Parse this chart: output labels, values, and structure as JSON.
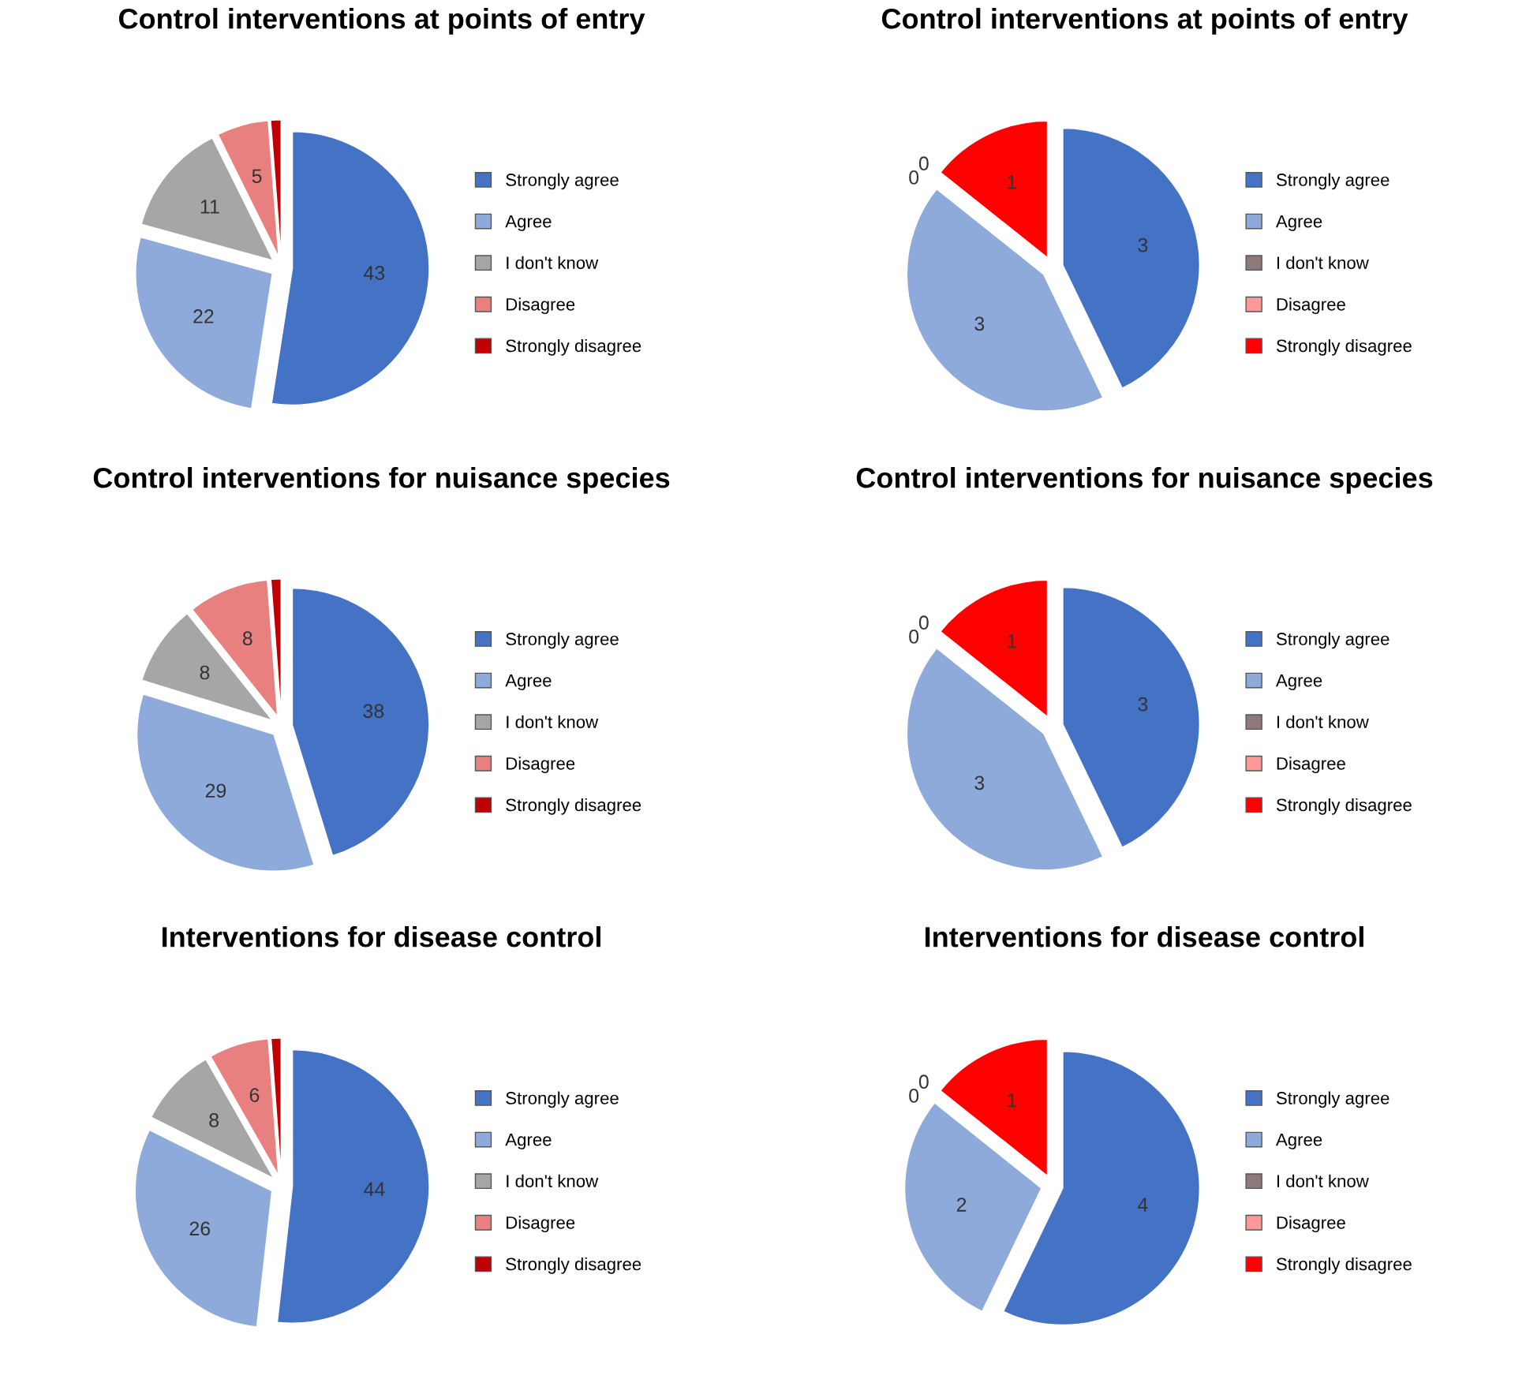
{
  "chart_data": [
    {
      "type": "pie",
      "title": "Control interventions at points of entry",
      "categories": [
        "Strongly agree",
        "Agree",
        "I don't know",
        "Disagree",
        "Strongly disagree"
      ],
      "values": [
        43,
        22,
        11,
        5,
        1
      ],
      "colors": [
        "#4472c4",
        "#8eaadb",
        "#a6a6a6",
        "#e88080",
        "#c00000"
      ],
      "value_labels": [
        "43",
        "22",
        "11",
        "5",
        null
      ],
      "legend": "right"
    },
    {
      "type": "pie",
      "title": "Control interventions at points of entry",
      "categories": [
        "Strongly agree",
        "Agree",
        "I don't know",
        "Disagree",
        "Strongly disagree"
      ],
      "values": [
        3,
        3,
        0,
        0,
        1
      ],
      "colors": [
        "#4472c4",
        "#8eaadb",
        "#8c7a7a",
        "#ff9999",
        "#ff0000"
      ],
      "value_labels": [
        "3",
        "3",
        "0",
        "0",
        "1"
      ],
      "legend": "right"
    },
    {
      "type": "pie",
      "title": "Control interventions for nuisance species",
      "categories": [
        "Strongly agree",
        "Agree",
        "I don't know",
        "Disagree",
        "Strongly disagree"
      ],
      "values": [
        38,
        29,
        8,
        8,
        1
      ],
      "colors": [
        "#4472c4",
        "#8eaadb",
        "#a6a6a6",
        "#e88080",
        "#c00000"
      ],
      "value_labels": [
        "38",
        "29",
        "8",
        "8",
        null
      ],
      "legend": "right"
    },
    {
      "type": "pie",
      "title": "Control interventions for nuisance species",
      "categories": [
        "Strongly agree",
        "Agree",
        "I don't know",
        "Disagree",
        "Strongly disagree"
      ],
      "values": [
        3,
        3,
        0,
        0,
        1
      ],
      "colors": [
        "#4472c4",
        "#8eaadb",
        "#8c7a7a",
        "#ff9999",
        "#ff0000"
      ],
      "value_labels": [
        "3",
        "3",
        "0",
        "0",
        "1"
      ],
      "legend": "right"
    },
    {
      "type": "pie",
      "title": "Interventions for disease control",
      "categories": [
        "Strongly agree",
        "Agree",
        "I don't know",
        "Disagree",
        "Strongly disagree"
      ],
      "values": [
        44,
        26,
        8,
        6,
        1
      ],
      "colors": [
        "#4472c4",
        "#8eaadb",
        "#a6a6a6",
        "#e88080",
        "#c00000"
      ],
      "value_labels": [
        "44",
        "26",
        "8",
        "6",
        null
      ],
      "legend": "right"
    },
    {
      "type": "pie",
      "title": "Interventions for disease control",
      "categories": [
        "Strongly agree",
        "Agree",
        "I don't know",
        "Disagree",
        "Strongly disagree"
      ],
      "values": [
        4,
        2,
        0,
        0,
        1
      ],
      "colors": [
        "#4472c4",
        "#8eaadb",
        "#8c7a7a",
        "#ff9999",
        "#ff0000"
      ],
      "value_labels": [
        "4",
        "2",
        "0",
        "0",
        "1"
      ],
      "legend": "right"
    }
  ]
}
